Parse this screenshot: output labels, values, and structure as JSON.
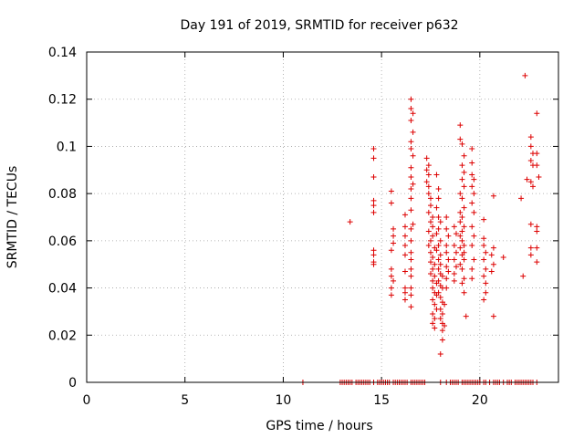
{
  "chart_data": {
    "type": "scatter",
    "title": "Day 191 of 2019, SRMTID for receiver p632",
    "xlabel": "GPS time / hours",
    "ylabel": "SRMTID / TECUs",
    "xlim": [
      0,
      24
    ],
    "ylim": [
      0,
      0.14
    ],
    "grid": true,
    "x_ticks": [
      0,
      5,
      10,
      15,
      20
    ],
    "x_tick_labels": [
      "0",
      "5",
      "10",
      "15",
      "20"
    ],
    "y_ticks": [
      0,
      0.02,
      0.04,
      0.06,
      0.08,
      0.1,
      0.12,
      0.14
    ],
    "y_tick_labels": [
      "0",
      "0.02",
      "0.04",
      "0.06",
      "0.08",
      "0.1",
      "0.12",
      "0.14"
    ],
    "marker": "+",
    "color": "#dd0000",
    "series": [
      {
        "name": "SRMTID",
        "points": [
          [
            11.0,
            0.0
          ],
          [
            12.9,
            0.0
          ],
          [
            13.0,
            0.0
          ],
          [
            13.1,
            0.0
          ],
          [
            13.2,
            0.0
          ],
          [
            13.3,
            0.0
          ],
          [
            13.4,
            0.0
          ],
          [
            13.5,
            0.0
          ],
          [
            13.7,
            0.0
          ],
          [
            13.8,
            0.0
          ],
          [
            13.9,
            0.0
          ],
          [
            14.0,
            0.0
          ],
          [
            14.1,
            0.0
          ],
          [
            14.2,
            0.0
          ],
          [
            14.3,
            0.0
          ],
          [
            14.4,
            0.0
          ],
          [
            14.6,
            0.0
          ],
          [
            14.8,
            0.0
          ],
          [
            14.9,
            0.0
          ],
          [
            15.0,
            0.0
          ],
          [
            15.1,
            0.0
          ],
          [
            15.2,
            0.0
          ],
          [
            15.3,
            0.0
          ],
          [
            15.4,
            0.0
          ],
          [
            15.6,
            0.0
          ],
          [
            15.7,
            0.0
          ],
          [
            15.8,
            0.0
          ],
          [
            15.9,
            0.0
          ],
          [
            16.0,
            0.0
          ],
          [
            16.1,
            0.0
          ],
          [
            16.2,
            0.0
          ],
          [
            16.3,
            0.0
          ],
          [
            16.5,
            0.0
          ],
          [
            16.6,
            0.0
          ],
          [
            16.7,
            0.0
          ],
          [
            16.8,
            0.0
          ],
          [
            16.9,
            0.0
          ],
          [
            17.0,
            0.0
          ],
          [
            17.1,
            0.0
          ],
          [
            17.2,
            0.0
          ],
          [
            18.0,
            0.0
          ],
          [
            18.3,
            0.0
          ],
          [
            18.5,
            0.0
          ],
          [
            18.6,
            0.0
          ],
          [
            18.7,
            0.0
          ],
          [
            18.8,
            0.0
          ],
          [
            18.9,
            0.0
          ],
          [
            19.1,
            0.0
          ],
          [
            19.2,
            0.0
          ],
          [
            19.3,
            0.0
          ],
          [
            19.4,
            0.0
          ],
          [
            19.5,
            0.0
          ],
          [
            19.6,
            0.0
          ],
          [
            19.7,
            0.0
          ],
          [
            19.8,
            0.0
          ],
          [
            19.9,
            0.0
          ],
          [
            20.0,
            0.0
          ],
          [
            20.2,
            0.0
          ],
          [
            20.3,
            0.0
          ],
          [
            20.5,
            0.0
          ],
          [
            20.7,
            0.0
          ],
          [
            20.8,
            0.0
          ],
          [
            20.9,
            0.0
          ],
          [
            21.0,
            0.0
          ],
          [
            21.2,
            0.0
          ],
          [
            21.4,
            0.0
          ],
          [
            21.5,
            0.0
          ],
          [
            21.6,
            0.0
          ],
          [
            21.8,
            0.0
          ],
          [
            21.9,
            0.0
          ],
          [
            22.0,
            0.0
          ],
          [
            22.1,
            0.0
          ],
          [
            22.2,
            0.0
          ],
          [
            22.3,
            0.0
          ],
          [
            22.4,
            0.0
          ],
          [
            22.5,
            0.0
          ],
          [
            22.6,
            0.0
          ],
          [
            22.7,
            0.0
          ],
          [
            22.9,
            0.0
          ],
          [
            13.4,
            0.068
          ],
          [
            14.6,
            0.099
          ],
          [
            14.6,
            0.095
          ],
          [
            14.6,
            0.087
          ],
          [
            14.6,
            0.077
          ],
          [
            14.6,
            0.075
          ],
          [
            14.6,
            0.072
          ],
          [
            14.6,
            0.056
          ],
          [
            14.6,
            0.054
          ],
          [
            14.6,
            0.051
          ],
          [
            14.6,
            0.05
          ],
          [
            15.5,
            0.081
          ],
          [
            15.5,
            0.076
          ],
          [
            15.6,
            0.065
          ],
          [
            15.6,
            0.062
          ],
          [
            15.6,
            0.059
          ],
          [
            15.5,
            0.056
          ],
          [
            15.5,
            0.048
          ],
          [
            15.5,
            0.045
          ],
          [
            15.6,
            0.043
          ],
          [
            15.5,
            0.04
          ],
          [
            15.5,
            0.037
          ],
          [
            16.2,
            0.071
          ],
          [
            16.2,
            0.066
          ],
          [
            16.2,
            0.062
          ],
          [
            16.2,
            0.058
          ],
          [
            16.2,
            0.054
          ],
          [
            16.2,
            0.047
          ],
          [
            16.2,
            0.04
          ],
          [
            16.2,
            0.038
          ],
          [
            16.2,
            0.035
          ],
          [
            16.5,
            0.12
          ],
          [
            16.5,
            0.116
          ],
          [
            16.6,
            0.114
          ],
          [
            16.5,
            0.111
          ],
          [
            16.6,
            0.106
          ],
          [
            16.5,
            0.102
          ],
          [
            16.5,
            0.099
          ],
          [
            16.6,
            0.096
          ],
          [
            16.5,
            0.091
          ],
          [
            16.5,
            0.087
          ],
          [
            16.6,
            0.084
          ],
          [
            16.5,
            0.082
          ],
          [
            16.5,
            0.078
          ],
          [
            16.5,
            0.073
          ],
          [
            16.6,
            0.067
          ],
          [
            16.5,
            0.065
          ],
          [
            16.5,
            0.06
          ],
          [
            16.5,
            0.055
          ],
          [
            16.5,
            0.052
          ],
          [
            16.5,
            0.048
          ],
          [
            16.5,
            0.045
          ],
          [
            16.5,
            0.04
          ],
          [
            16.5,
            0.037
          ],
          [
            16.5,
            0.032
          ],
          [
            17.3,
            0.095
          ],
          [
            17.4,
            0.092
          ],
          [
            17.3,
            0.09
          ],
          [
            17.4,
            0.088
          ],
          [
            17.3,
            0.085
          ],
          [
            17.4,
            0.083
          ],
          [
            17.4,
            0.08
          ],
          [
            17.5,
            0.078
          ],
          [
            17.5,
            0.075
          ],
          [
            17.4,
            0.072
          ],
          [
            17.6,
            0.07
          ],
          [
            17.5,
            0.068
          ],
          [
            17.6,
            0.066
          ],
          [
            17.4,
            0.064
          ],
          [
            17.6,
            0.062
          ],
          [
            17.5,
            0.06
          ],
          [
            17.4,
            0.058
          ],
          [
            17.7,
            0.057
          ],
          [
            17.5,
            0.055
          ],
          [
            17.6,
            0.053
          ],
          [
            17.5,
            0.051
          ],
          [
            17.7,
            0.05
          ],
          [
            17.6,
            0.048
          ],
          [
            17.5,
            0.046
          ],
          [
            17.7,
            0.045
          ],
          [
            17.6,
            0.043
          ],
          [
            17.8,
            0.042
          ],
          [
            17.6,
            0.04
          ],
          [
            17.7,
            0.038
          ],
          [
            17.8,
            0.037
          ],
          [
            17.6,
            0.035
          ],
          [
            17.7,
            0.033
          ],
          [
            17.8,
            0.031
          ],
          [
            17.6,
            0.029
          ],
          [
            17.7,
            0.027
          ],
          [
            17.6,
            0.025
          ],
          [
            17.7,
            0.023
          ],
          [
            17.8,
            0.088
          ],
          [
            17.9,
            0.082
          ],
          [
            17.9,
            0.078
          ],
          [
            17.8,
            0.074
          ],
          [
            17.9,
            0.07
          ],
          [
            18.0,
            0.068
          ],
          [
            17.9,
            0.065
          ],
          [
            17.8,
            0.063
          ],
          [
            18.0,
            0.06
          ],
          [
            17.9,
            0.058
          ],
          [
            17.8,
            0.056
          ],
          [
            18.0,
            0.054
          ],
          [
            17.9,
            0.052
          ],
          [
            18.0,
            0.05
          ],
          [
            17.9,
            0.048
          ],
          [
            18.0,
            0.046
          ],
          [
            18.1,
            0.045
          ],
          [
            17.9,
            0.043
          ],
          [
            18.0,
            0.041
          ],
          [
            18.1,
            0.04
          ],
          [
            17.9,
            0.038
          ],
          [
            18.0,
            0.036
          ],
          [
            18.1,
            0.034
          ],
          [
            18.2,
            0.033
          ],
          [
            18.0,
            0.031
          ],
          [
            18.1,
            0.029
          ],
          [
            18.0,
            0.027
          ],
          [
            18.1,
            0.025
          ],
          [
            18.2,
            0.024
          ],
          [
            18.1,
            0.022
          ],
          [
            18.1,
            0.018
          ],
          [
            18.0,
            0.012
          ],
          [
            18.3,
            0.07
          ],
          [
            18.3,
            0.065
          ],
          [
            18.4,
            0.062
          ],
          [
            18.3,
            0.058
          ],
          [
            18.3,
            0.055
          ],
          [
            18.4,
            0.052
          ],
          [
            18.3,
            0.049
          ],
          [
            18.4,
            0.047
          ],
          [
            18.3,
            0.044
          ],
          [
            18.3,
            0.04
          ],
          [
            18.7,
            0.066
          ],
          [
            18.8,
            0.063
          ],
          [
            18.7,
            0.058
          ],
          [
            18.8,
            0.055
          ],
          [
            18.7,
            0.052
          ],
          [
            18.8,
            0.049
          ],
          [
            18.7,
            0.046
          ],
          [
            18.7,
            0.043
          ],
          [
            19.0,
            0.109
          ],
          [
            19.0,
            0.103
          ],
          [
            19.1,
            0.101
          ],
          [
            19.2,
            0.096
          ],
          [
            19.1,
            0.092
          ],
          [
            19.2,
            0.089
          ],
          [
            19.1,
            0.086
          ],
          [
            19.2,
            0.083
          ],
          [
            19.0,
            0.08
          ],
          [
            19.1,
            0.078
          ],
          [
            19.2,
            0.074
          ],
          [
            19.0,
            0.072
          ],
          [
            19.1,
            0.07
          ],
          [
            19.0,
            0.068
          ],
          [
            19.2,
            0.066
          ],
          [
            19.1,
            0.064
          ],
          [
            19.0,
            0.062
          ],
          [
            19.1,
            0.06
          ],
          [
            19.2,
            0.058
          ],
          [
            19.0,
            0.057
          ],
          [
            19.2,
            0.055
          ],
          [
            19.1,
            0.054
          ],
          [
            19.2,
            0.052
          ],
          [
            19.0,
            0.05
          ],
          [
            19.1,
            0.048
          ],
          [
            19.2,
            0.044
          ],
          [
            19.1,
            0.042
          ],
          [
            19.2,
            0.038
          ],
          [
            19.3,
            0.028
          ],
          [
            19.6,
            0.099
          ],
          [
            19.6,
            0.093
          ],
          [
            19.6,
            0.088
          ],
          [
            19.7,
            0.086
          ],
          [
            19.6,
            0.083
          ],
          [
            19.7,
            0.08
          ],
          [
            19.6,
            0.076
          ],
          [
            19.7,
            0.072
          ],
          [
            19.6,
            0.066
          ],
          [
            19.7,
            0.062
          ],
          [
            19.6,
            0.058
          ],
          [
            19.7,
            0.052
          ],
          [
            19.6,
            0.048
          ],
          [
            19.6,
            0.044
          ],
          [
            20.2,
            0.069
          ],
          [
            20.2,
            0.061
          ],
          [
            20.2,
            0.058
          ],
          [
            20.3,
            0.055
          ],
          [
            20.2,
            0.052
          ],
          [
            20.3,
            0.048
          ],
          [
            20.2,
            0.045
          ],
          [
            20.3,
            0.042
          ],
          [
            20.3,
            0.038
          ],
          [
            20.2,
            0.035
          ],
          [
            20.7,
            0.079
          ],
          [
            20.7,
            0.057
          ],
          [
            20.6,
            0.054
          ],
          [
            20.7,
            0.05
          ],
          [
            20.6,
            0.047
          ],
          [
            20.7,
            0.028
          ],
          [
            21.2,
            0.053
          ],
          [
            22.1,
            0.078
          ],
          [
            22.3,
            0.13
          ],
          [
            22.4,
            0.086
          ],
          [
            22.2,
            0.045
          ],
          [
            22.6,
            0.104
          ],
          [
            22.6,
            0.1
          ],
          [
            22.7,
            0.097
          ],
          [
            22.6,
            0.094
          ],
          [
            22.7,
            0.092
          ],
          [
            22.6,
            0.085
          ],
          [
            22.7,
            0.083
          ],
          [
            22.6,
            0.067
          ],
          [
            22.6,
            0.057
          ],
          [
            22.6,
            0.054
          ],
          [
            22.9,
            0.114
          ],
          [
            22.9,
            0.097
          ],
          [
            22.9,
            0.092
          ],
          [
            23.0,
            0.087
          ],
          [
            22.9,
            0.066
          ],
          [
            22.9,
            0.064
          ],
          [
            22.9,
            0.057
          ],
          [
            22.9,
            0.051
          ]
        ]
      }
    ]
  }
}
